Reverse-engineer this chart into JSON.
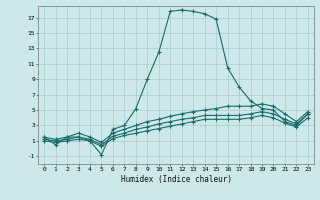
{
  "xlabel": "Humidex (Indice chaleur)",
  "ylabel": "",
  "bg_color": "#cce8e8",
  "grid_color": "#aacccc",
  "line_color": "#1a6b6b",
  "xlim": [
    -0.5,
    23.5
  ],
  "ylim": [
    -2.0,
    18.5
  ],
  "xticks": [
    0,
    1,
    2,
    3,
    4,
    5,
    6,
    7,
    8,
    9,
    10,
    11,
    12,
    13,
    14,
    15,
    16,
    17,
    18,
    19,
    20,
    21,
    22,
    23
  ],
  "yticks": [
    -1,
    1,
    3,
    5,
    7,
    9,
    11,
    13,
    15,
    17
  ],
  "line1_x": [
    0,
    1,
    2,
    3,
    4,
    5,
    6,
    7,
    8,
    9,
    10,
    11,
    12,
    13,
    14,
    15,
    16,
    17,
    18,
    19,
    20,
    21,
    22,
    23
  ],
  "line1_y": [
    1.5,
    0.5,
    1.5,
    1.5,
    1.0,
    -0.8,
    2.5,
    3.0,
    5.2,
    9.0,
    12.5,
    17.8,
    18.0,
    17.8,
    17.5,
    16.8,
    10.5,
    8.0,
    6.2,
    5.2,
    5.0,
    3.5,
    3.0,
    4.5
  ],
  "line2_x": [
    0,
    1,
    2,
    3,
    4,
    5,
    6,
    7,
    8,
    9,
    10,
    11,
    12,
    13,
    14,
    15,
    16,
    17,
    18,
    19,
    20,
    21,
    22,
    23
  ],
  "line2_y": [
    1.5,
    1.2,
    1.5,
    2.0,
    1.5,
    0.8,
    2.0,
    2.5,
    3.0,
    3.5,
    3.8,
    4.2,
    4.5,
    4.8,
    5.0,
    5.2,
    5.5,
    5.5,
    5.5,
    5.8,
    5.5,
    4.5,
    3.5,
    4.8
  ],
  "line3_x": [
    0,
    1,
    2,
    3,
    4,
    5,
    6,
    7,
    8,
    9,
    10,
    11,
    12,
    13,
    14,
    15,
    16,
    17,
    18,
    19,
    20,
    21,
    22,
    23
  ],
  "line3_y": [
    1.2,
    1.0,
    1.2,
    1.5,
    1.2,
    0.5,
    1.6,
    2.0,
    2.5,
    2.8,
    3.2,
    3.5,
    3.8,
    4.0,
    4.3,
    4.3,
    4.3,
    4.3,
    4.5,
    4.8,
    4.5,
    3.8,
    3.2,
    4.5
  ],
  "line4_x": [
    0,
    1,
    2,
    3,
    4,
    5,
    6,
    7,
    8,
    9,
    10,
    11,
    12,
    13,
    14,
    15,
    16,
    17,
    18,
    19,
    20,
    21,
    22,
    23
  ],
  "line4_y": [
    1.0,
    0.8,
    1.0,
    1.2,
    1.0,
    0.3,
    1.3,
    1.7,
    2.0,
    2.3,
    2.6,
    2.9,
    3.2,
    3.5,
    3.8,
    3.8,
    3.8,
    3.8,
    4.0,
    4.3,
    4.0,
    3.3,
    2.8,
    4.0
  ]
}
